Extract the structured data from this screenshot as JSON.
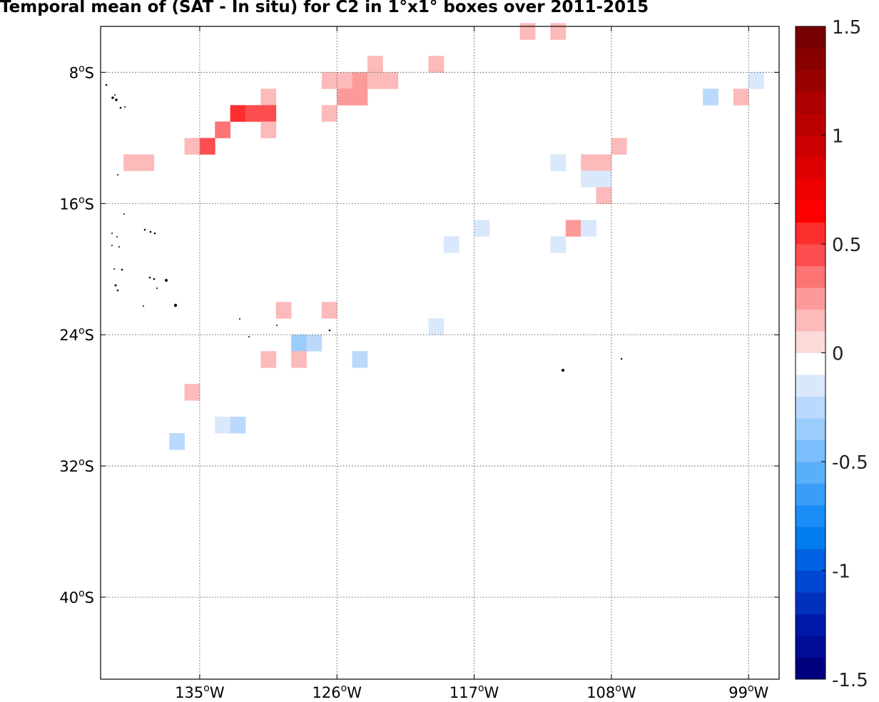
{
  "chart_data": {
    "type": "heatmap",
    "title": "Temporal mean of (SAT - In situ) for C2 in 1°x1° boxes over 2011-2015",
    "xlabel": "",
    "ylabel": "",
    "xlim": [
      -141.5,
      -97
    ],
    "ylim": [
      -45,
      -5.2
    ],
    "grid": true,
    "x_ticks": [
      {
        "value": -135,
        "label": "135°W"
      },
      {
        "value": -126,
        "label": "126°W"
      },
      {
        "value": -117,
        "label": "117°W"
      },
      {
        "value": -108,
        "label": "108°W"
      },
      {
        "value": -99,
        "label": "99°W"
      }
    ],
    "y_ticks": [
      {
        "value": -8,
        "label": "8°S"
      },
      {
        "value": -16,
        "label": "16°S"
      },
      {
        "value": -24,
        "label": "24°S"
      },
      {
        "value": -32,
        "label": "32°S"
      },
      {
        "value": -40,
        "label": "40°S"
      }
    ],
    "colorbar": {
      "range": [
        -1.5,
        1.5
      ],
      "labels": [
        "1.5",
        "1",
        "0.5",
        "0",
        "-0.5",
        "-1",
        "-1.5"
      ],
      "label_values": [
        1.5,
        1,
        0.5,
        0,
        -0.5,
        -1,
        -1.5
      ],
      "colors": [
        "#00007f",
        "#000c94",
        "#0018a8",
        "#0030bd",
        "#0048d1",
        "#0062e0",
        "#007cef",
        "#1a8cf5",
        "#3a9ef8",
        "#5aaffa",
        "#7abefb",
        "#9acdfc",
        "#bad9fc",
        "#dae8fc",
        "#ffffff",
        "#fcdada",
        "#fcbaba",
        "#fc9a9a",
        "#fc7474",
        "#fc4e4e",
        "#fc2e2e",
        "#ff0000",
        "#ee0000",
        "#de0000",
        "#cc0000",
        "#bb0000",
        "#aa0000",
        "#990000",
        "#880000",
        "#770000"
      ]
    },
    "cells": [
      {
        "lon": -113.5,
        "lat": -5.5,
        "value": 0.15
      },
      {
        "lon": -111.5,
        "lat": -5.5,
        "value": 0.15
      },
      {
        "lon": -123.5,
        "lat": -7.5,
        "value": 0.15
      },
      {
        "lon": -119.5,
        "lat": -7.5,
        "value": 0.15
      },
      {
        "lon": -126.5,
        "lat": -8.5,
        "value": 0.15
      },
      {
        "lon": -125.5,
        "lat": -8.5,
        "value": 0.15
      },
      {
        "lon": -124.5,
        "lat": -8.5,
        "value": 0.25
      },
      {
        "lon": -123.5,
        "lat": -8.5,
        "value": 0.15
      },
      {
        "lon": -122.5,
        "lat": -8.5,
        "value": 0.15
      },
      {
        "lon": -98.5,
        "lat": -8.5,
        "value": -0.15
      },
      {
        "lon": -130.5,
        "lat": -9.5,
        "value": 0.15
      },
      {
        "lon": -125.5,
        "lat": -9.5,
        "value": 0.25
      },
      {
        "lon": -124.5,
        "lat": -9.5,
        "value": 0.25
      },
      {
        "lon": -101.5,
        "lat": -9.5,
        "value": -0.25
      },
      {
        "lon": -99.5,
        "lat": -9.5,
        "value": 0.15
      },
      {
        "lon": -132.5,
        "lat": -10.5,
        "value": 0.55
      },
      {
        "lon": -131.5,
        "lat": -10.5,
        "value": 0.45
      },
      {
        "lon": -130.5,
        "lat": -10.5,
        "value": 0.45
      },
      {
        "lon": -126.5,
        "lat": -10.5,
        "value": 0.15
      },
      {
        "lon": -133.5,
        "lat": -11.5,
        "value": 0.35
      },
      {
        "lon": -130.5,
        "lat": -11.5,
        "value": 0.15
      },
      {
        "lon": -134.5,
        "lat": -12.5,
        "value": 0.45
      },
      {
        "lon": -135.5,
        "lat": -12.5,
        "value": 0.15
      },
      {
        "lon": -107.5,
        "lat": -12.5,
        "value": 0.15
      },
      {
        "lon": -139.5,
        "lat": -13.5,
        "value": 0.15
      },
      {
        "lon": -138.5,
        "lat": -13.5,
        "value": 0.15
      },
      {
        "lon": -111.5,
        "lat": -13.5,
        "value": -0.15
      },
      {
        "lon": -109.5,
        "lat": -13.5,
        "value": 0.15
      },
      {
        "lon": -108.5,
        "lat": -13.5,
        "value": 0.15
      },
      {
        "lon": -109.5,
        "lat": -14.5,
        "value": -0.15
      },
      {
        "lon": -108.5,
        "lat": -14.5,
        "value": -0.15
      },
      {
        "lon": -108.5,
        "lat": -15.5,
        "value": 0.15
      },
      {
        "lon": -116.5,
        "lat": -17.5,
        "value": -0.15
      },
      {
        "lon": -110.5,
        "lat": -17.5,
        "value": 0.25
      },
      {
        "lon": -109.5,
        "lat": -17.5,
        "value": -0.15
      },
      {
        "lon": -118.5,
        "lat": -18.5,
        "value": -0.15
      },
      {
        "lon": -111.5,
        "lat": -18.5,
        "value": -0.15
      },
      {
        "lon": -129.5,
        "lat": -22.5,
        "value": 0.15
      },
      {
        "lon": -126.5,
        "lat": -22.5,
        "value": 0.15
      },
      {
        "lon": -119.5,
        "lat": -23.5,
        "value": -0.15
      },
      {
        "lon": -128.5,
        "lat": -24.5,
        "value": -0.35
      },
      {
        "lon": -127.5,
        "lat": -24.5,
        "value": -0.25
      },
      {
        "lon": -130.5,
        "lat": -25.5,
        "value": 0.15
      },
      {
        "lon": -128.5,
        "lat": -25.5,
        "value": 0.15
      },
      {
        "lon": -124.5,
        "lat": -25.5,
        "value": -0.25
      },
      {
        "lon": -135.5,
        "lat": -27.5,
        "value": 0.15
      },
      {
        "lon": -133.5,
        "lat": -29.5,
        "value": -0.15
      },
      {
        "lon": -132.5,
        "lat": -29.5,
        "value": -0.25
      },
      {
        "lon": -136.5,
        "lat": -30.5,
        "value": -0.25
      }
    ]
  }
}
